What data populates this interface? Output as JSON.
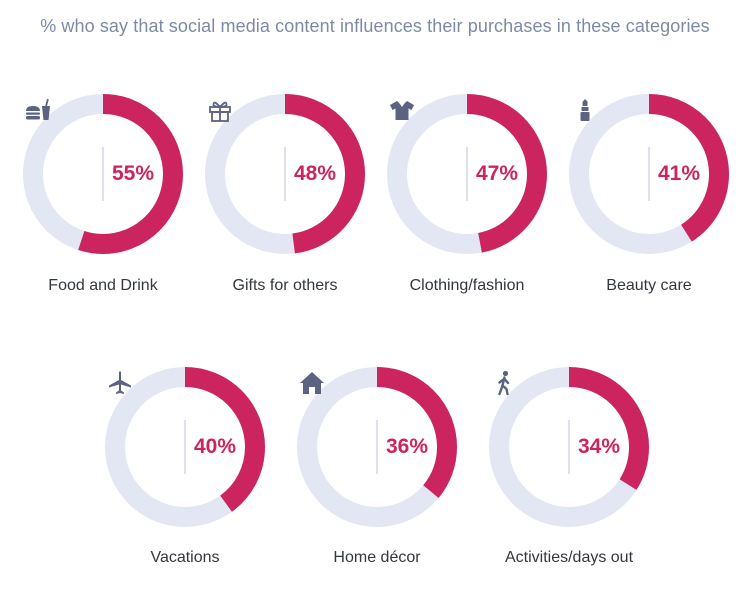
{
  "chart_data": {
    "type": "donut",
    "title": "% who say that social media content influences their purchases in these categories",
    "colors": {
      "filled": "#cc245e",
      "track": "#e3e7f3",
      "icon": "#5b6380"
    },
    "categories": [
      "Food and Drink",
      "Gifts for others",
      "Clothing/fashion",
      "Beauty care",
      "Vacations",
      "Home décor",
      "Activities/days out"
    ],
    "values": [
      55,
      48,
      47,
      41,
      40,
      36,
      34
    ],
    "value_labels": [
      "55%",
      "48%",
      "47%",
      "41%",
      "40%",
      "36%",
      "34%"
    ],
    "icons": [
      "burger-drink-icon",
      "gift-icon",
      "shirt-icon",
      "lipstick-icon",
      "airplane-icon",
      "house-icon",
      "walking-person-icon"
    ]
  }
}
